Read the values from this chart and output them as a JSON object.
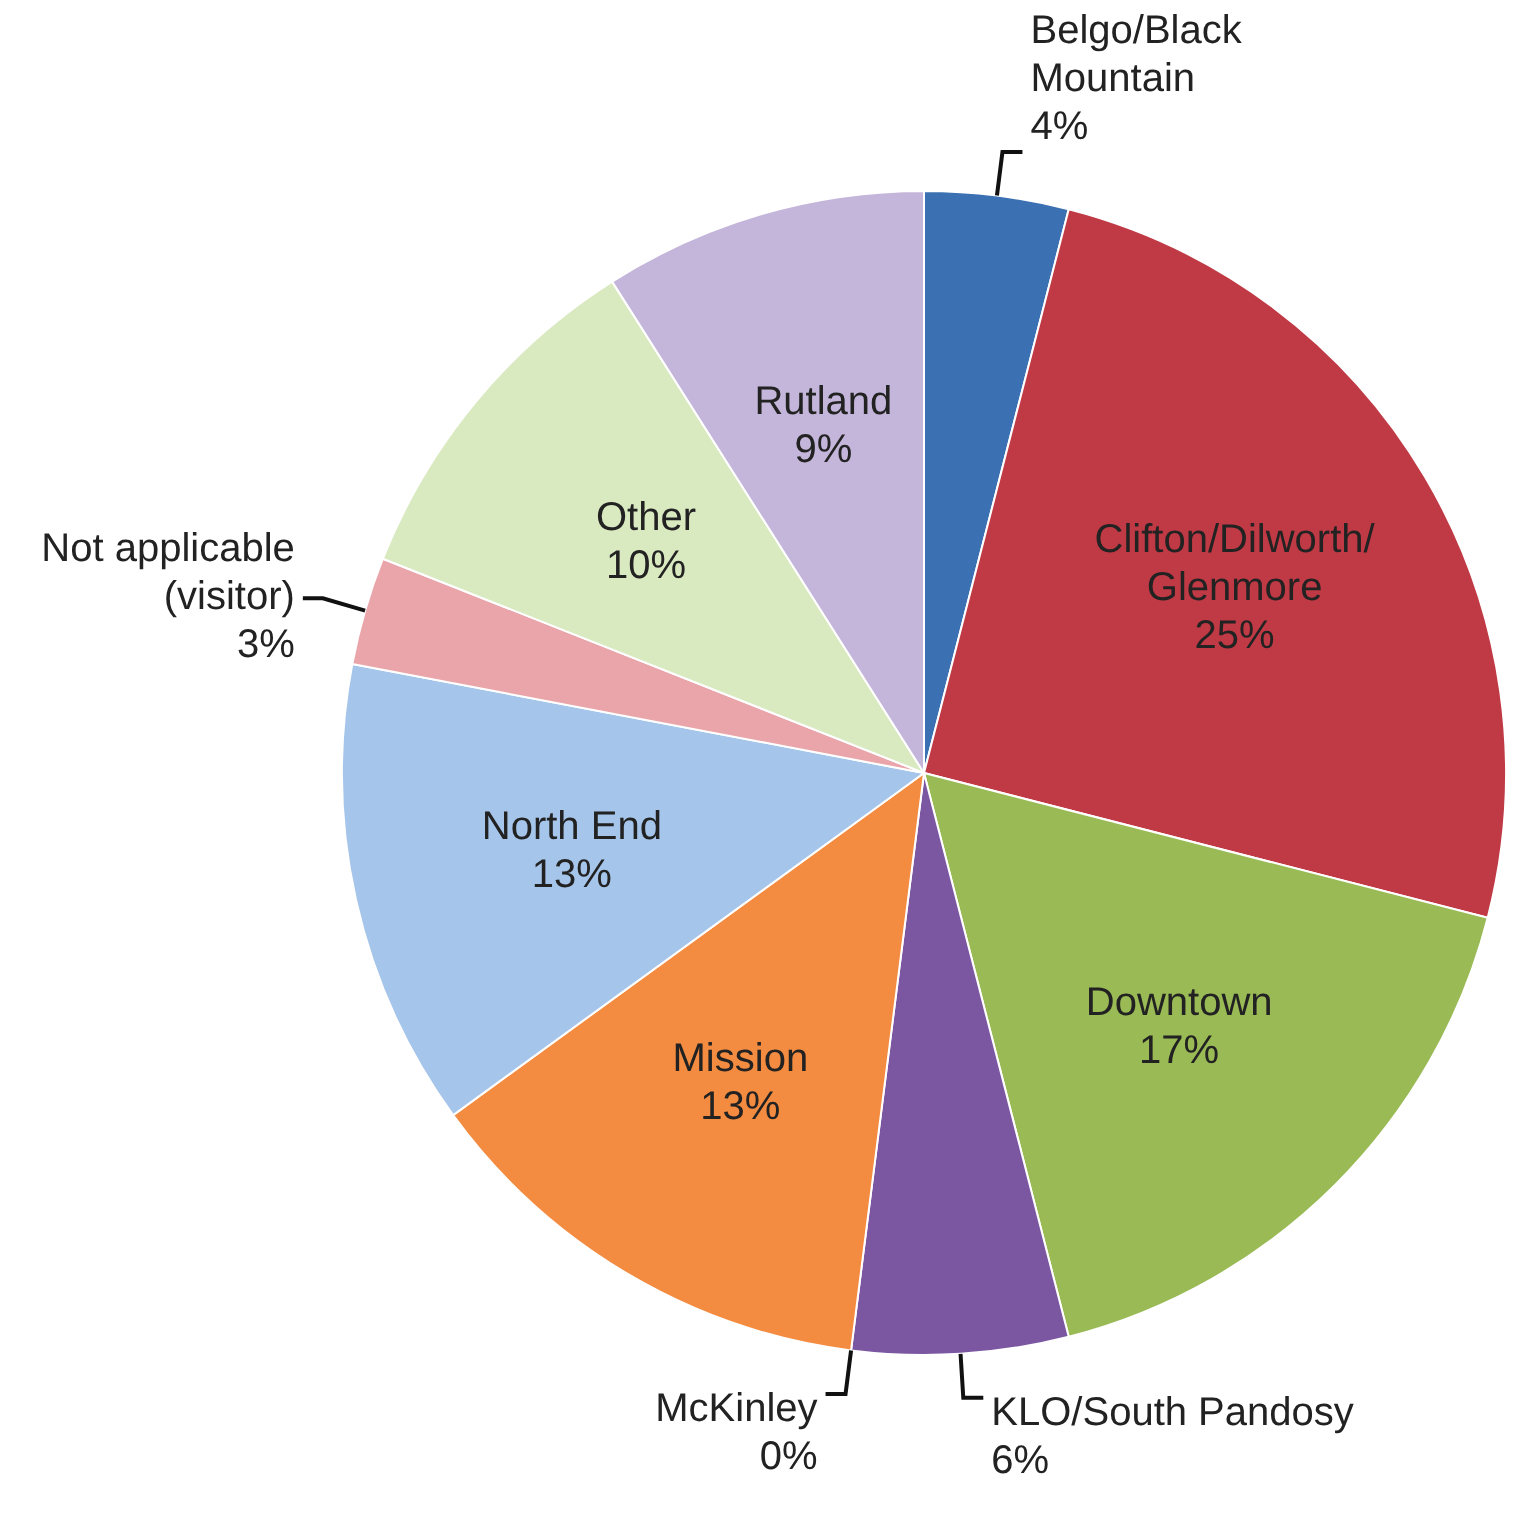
{
  "chart_data": {
    "type": "pie",
    "categories": [
      "Belgo/Black Mountain",
      "Clifton/Dilworth/Glenmore",
      "Downtown",
      "KLO/South Pandosy",
      "McKinley",
      "Mission",
      "North End",
      "Not applicable (visitor)",
      "Other",
      "Rutland"
    ],
    "values": [
      4,
      25,
      17,
      6,
      0,
      13,
      13,
      3,
      10,
      9
    ],
    "value_labels": [
      "4%",
      "25%",
      "17%",
      "6%",
      "0%",
      "13%",
      "13%",
      "3%",
      "10%",
      "9%"
    ],
    "colors": [
      "#3b70b2",
      "#c03a45",
      "#99ba54",
      "#7b57a1",
      "#3ba7c1",
      "#f38b40",
      "#a5c5ea",
      "#e9a5aa",
      "#d9e9c0",
      "#c4b5da"
    ]
  }
}
